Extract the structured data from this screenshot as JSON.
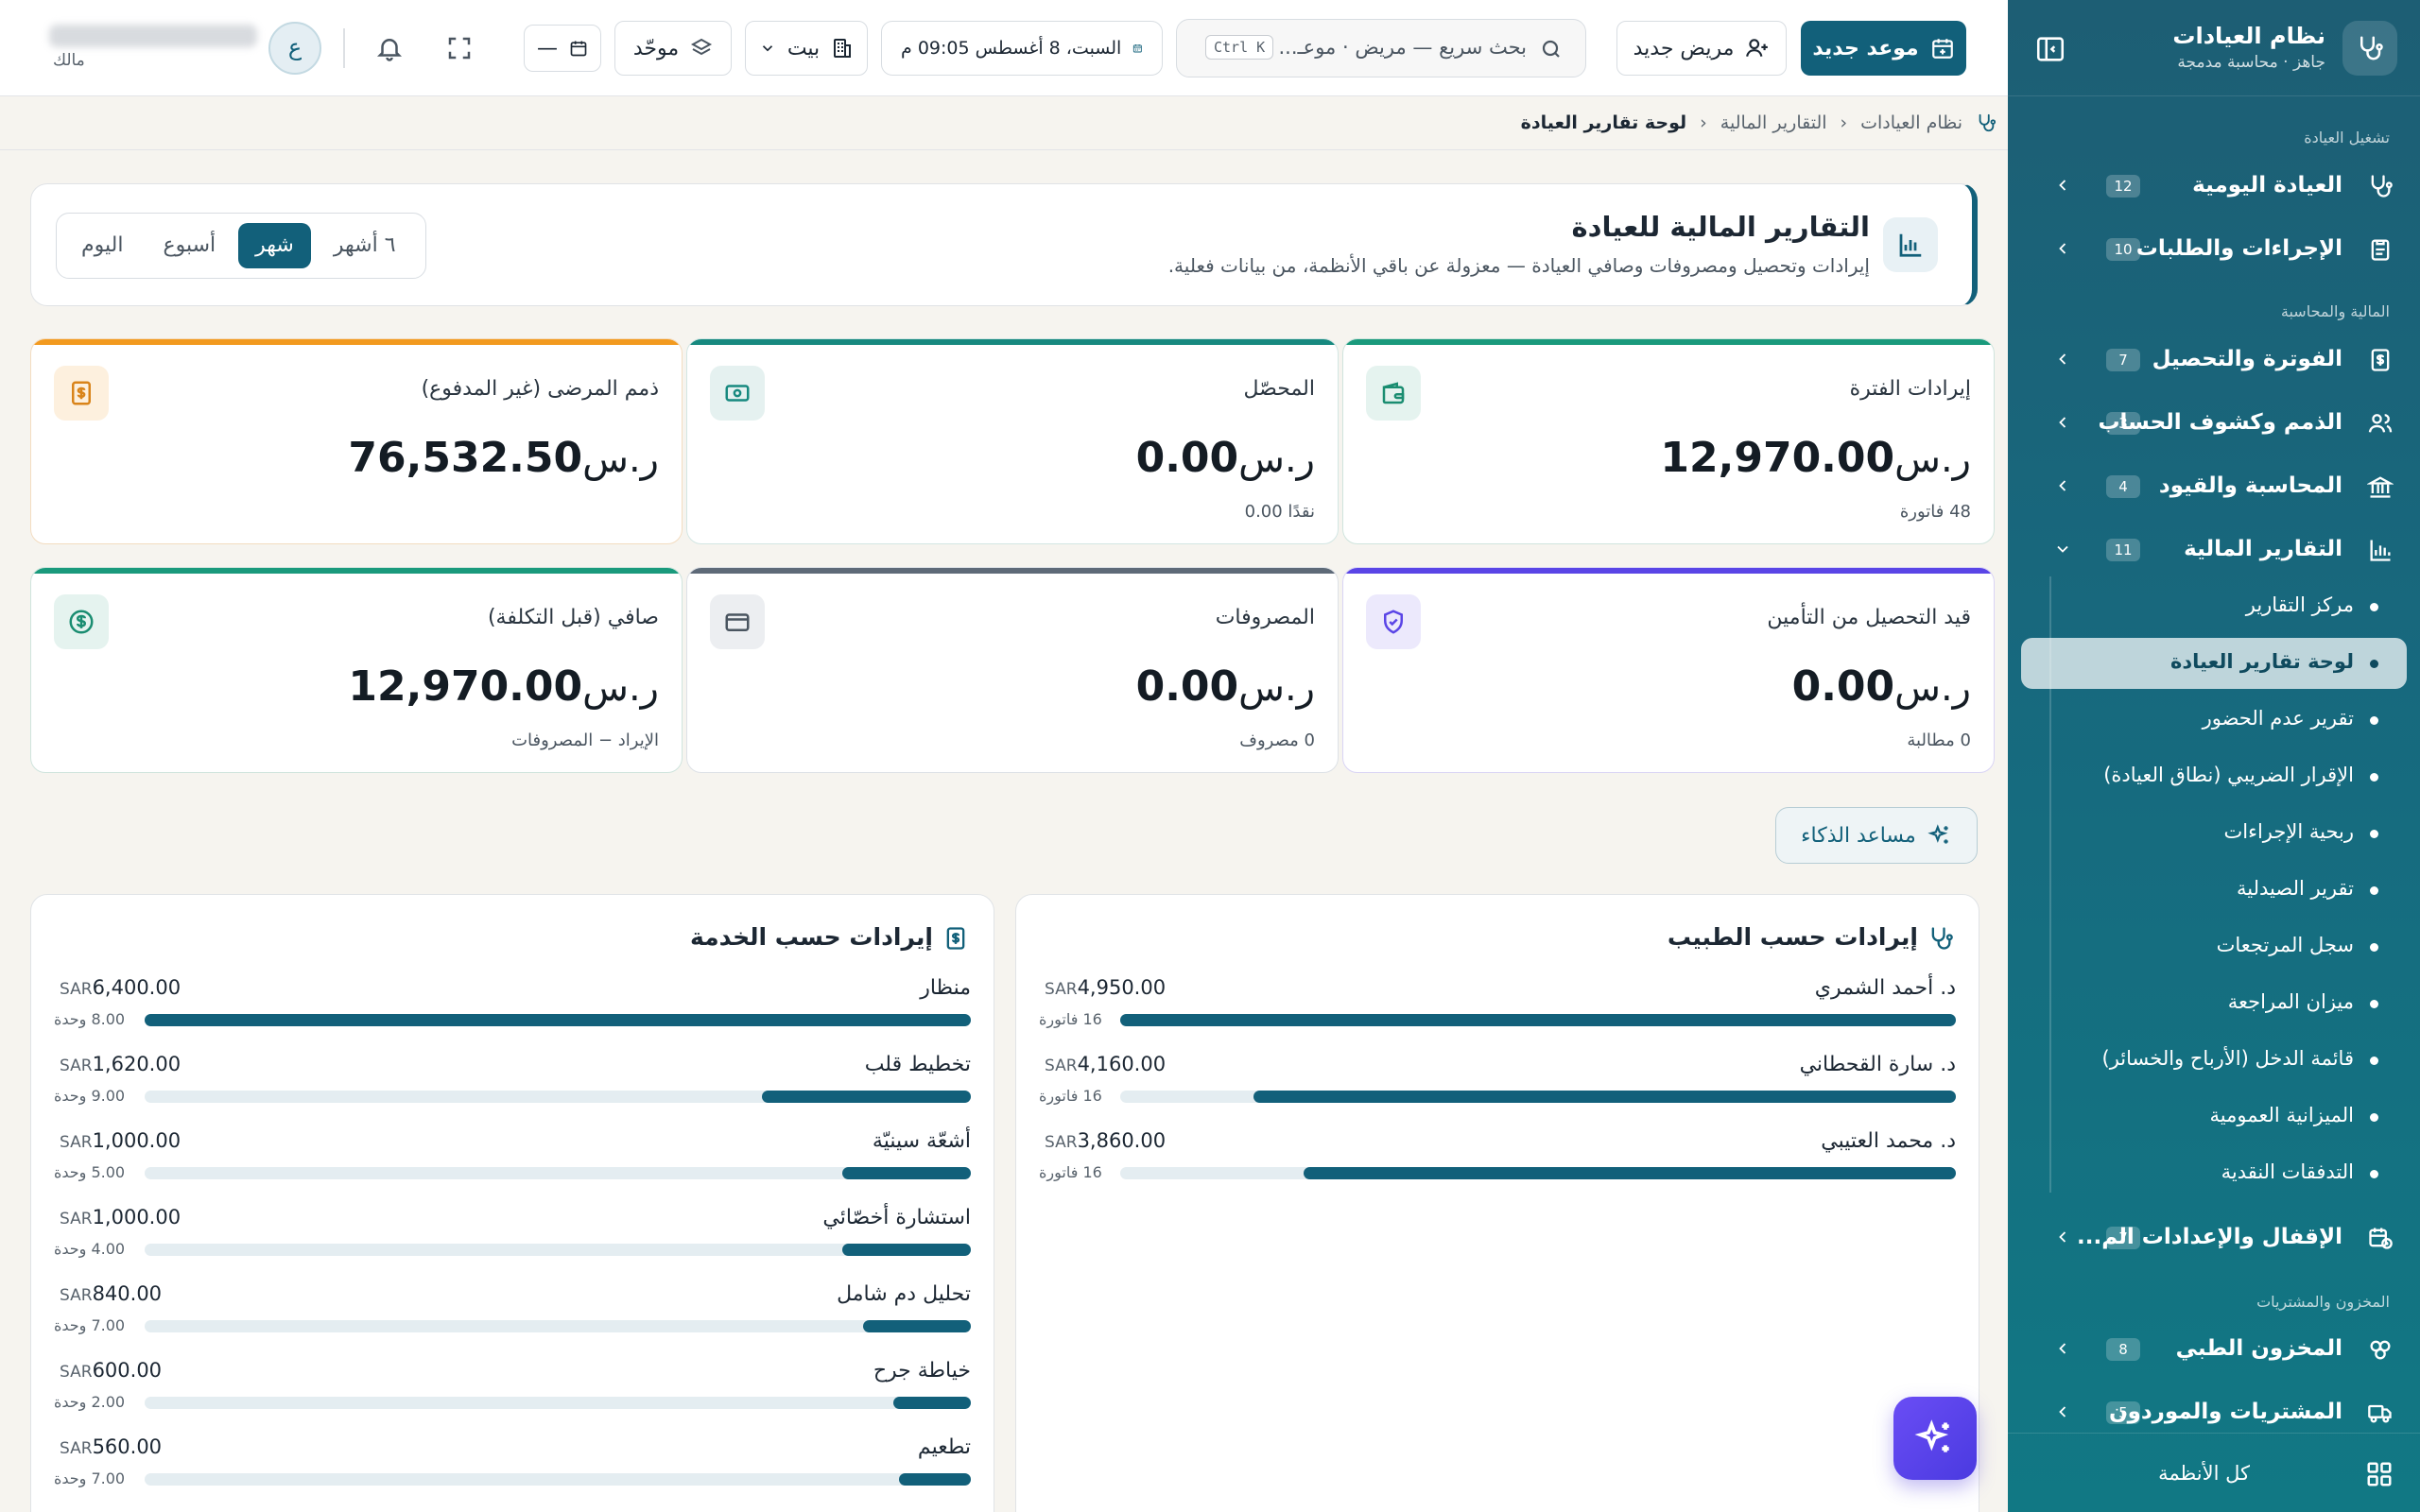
{
  "sidebar": {
    "app_title": "نظام العيادات",
    "app_subtitle": "جاهز · محاسبة مدمجة",
    "sections": [
      "تشغيل العيادة",
      "المالية والمحاسبة",
      "المخزون والمشتريات"
    ],
    "items": [
      {
        "label": "العيادة اليومية",
        "count": "12",
        "icon": "stethoscope-icon"
      },
      {
        "label": "الإجراءات والطلبات",
        "count": "10",
        "icon": "clipboard-icon"
      },
      {
        "label": "الفوترة والتحصيل",
        "count": "7",
        "icon": "invoice-icon"
      },
      {
        "label": "الذمم وكشوف الحساب",
        "count": "3",
        "icon": "users-icon"
      },
      {
        "label": "المحاسبة والقيود",
        "count": "4",
        "icon": "bank-icon"
      },
      {
        "label": "التقارير المالية",
        "count": "11",
        "icon": "chart-icon"
      },
      {
        "label": "الإقفال والإعدادات الم...",
        "count": "7",
        "icon": "calendar-clock-icon"
      },
      {
        "label": "المخزون الطبي",
        "count": "8",
        "icon": "flask-icon"
      },
      {
        "label": "المشتريات والموردون",
        "count": "5",
        "icon": "truck-icon"
      }
    ],
    "reports_children": [
      "مركز التقارير",
      "لوحة تقارير العيادة",
      "تقرير عدم الحضور",
      "الإقرار الضريبي (نطاق العيادة)",
      "ربحية الإجراءات",
      "تقرير الصيدلية",
      "سجل المرتجعات",
      "ميزان المراجعة",
      "قائمة الدخل (الأرباح والخسائر)",
      "الميزانية العمومية",
      "التدفقات النقدية"
    ],
    "footer_label": "كل الأنظمة"
  },
  "topbar": {
    "new_appointment": "موعد جديد",
    "new_patient": "مريض جديد",
    "search_placeholder": "بحث سريع — مريض · موعـ...",
    "search_shortcut": "Ctrl K",
    "datetime": "السبت، 8 أغسطس  09:05 م",
    "branch": "بيت",
    "unified": "موحّد",
    "date_compact": "—",
    "avatar_letter": "ع",
    "user_role": "مالك"
  },
  "breadcrumb": [
    "نظام العيادات",
    "التقارير المالية",
    "لوحة تقارير العيادة"
  ],
  "header": {
    "title": "التقارير المالية للعيادة",
    "subtitle": "إيرادات وتحصيل ومصروفات وصافي العيادة — معزولة عن باقي الأنظمة، من بيانات فعلية.",
    "periods": [
      "اليوم",
      "أسبوع",
      "شهر",
      "٦ أشهر"
    ],
    "active_period": "شهر"
  },
  "kpis": [
    {
      "title": "إيرادات الفترة",
      "currency": "ر.س",
      "value": "12,970.00",
      "foot": "48 فاتورة",
      "color": "#1a9a7c",
      "icon": "wallet-icon"
    },
    {
      "title": "المحصّل",
      "currency": "ر.س",
      "value": "0.00",
      "foot": "نقدًا 0.00",
      "color": "#17897f",
      "icon": "cash-icon"
    },
    {
      "title": "ذمم المرضى (غير المدفوع)",
      "currency": "ر.س",
      "value": "76,532.50",
      "foot": "",
      "color": "#f29a1f",
      "icon": "receipt-icon"
    },
    {
      "title": "قيد التحصيل من التأمين",
      "currency": "ر.س",
      "value": "0.00",
      "foot": "0 مطالبة",
      "color": "#5a45e6",
      "icon": "shield-icon"
    },
    {
      "title": "المصروفات",
      "currency": "ر.س",
      "value": "0.00",
      "foot": "0 مصروف",
      "color": "#5e6a78",
      "icon": "card-icon"
    },
    {
      "title": "صافي (قبل التكلفة)",
      "currency": "ر.س",
      "value": "12,970.00",
      "foot": "الإيراد − المصروفات",
      "color": "#1a9a7c",
      "icon": "dollar-icon"
    }
  ],
  "ai_assistant": "مساعد الذكاء",
  "doctor_panel": {
    "title": "إيرادات حسب الطبيب",
    "currency": "SAR",
    "rows": [
      {
        "name": "د. أحمد الشمري",
        "value": "4,950.00",
        "sub": "16 فاتورة",
        "fraction": 1.0
      },
      {
        "name": "د. سارة القحطاني",
        "value": "4,160.00",
        "sub": "16 فاتورة",
        "fraction": 0.84
      },
      {
        "name": "د. محمد العتيبي",
        "value": "3,860.00",
        "sub": "16 فاتورة",
        "fraction": 0.78
      }
    ]
  },
  "service_panel": {
    "title": "إيرادات حسب الخدمة",
    "currency": "SAR",
    "rows": [
      {
        "name": "منظار",
        "value": "6,400.00",
        "sub": "8.00 وحدة",
        "fraction": 1.0
      },
      {
        "name": "تخطيط قلب",
        "value": "1,620.00",
        "sub": "9.00 وحدة",
        "fraction": 0.253
      },
      {
        "name": "أشعّة سينيّة",
        "value": "1,000.00",
        "sub": "5.00 وحدة",
        "fraction": 0.156
      },
      {
        "name": "استشارة أخصّائي",
        "value": "1,000.00",
        "sub": "4.00 وحدة",
        "fraction": 0.156
      },
      {
        "name": "تحليل دم شامل",
        "value": "840.00",
        "sub": "7.00 وحدة",
        "fraction": 0.131
      },
      {
        "name": "خياطة جرح",
        "value": "600.00",
        "sub": "2.00 وحدة",
        "fraction": 0.094
      },
      {
        "name": "تطعيم",
        "value": "560.00",
        "sub": "7.00 وحدة",
        "fraction": 0.0875
      }
    ]
  }
}
